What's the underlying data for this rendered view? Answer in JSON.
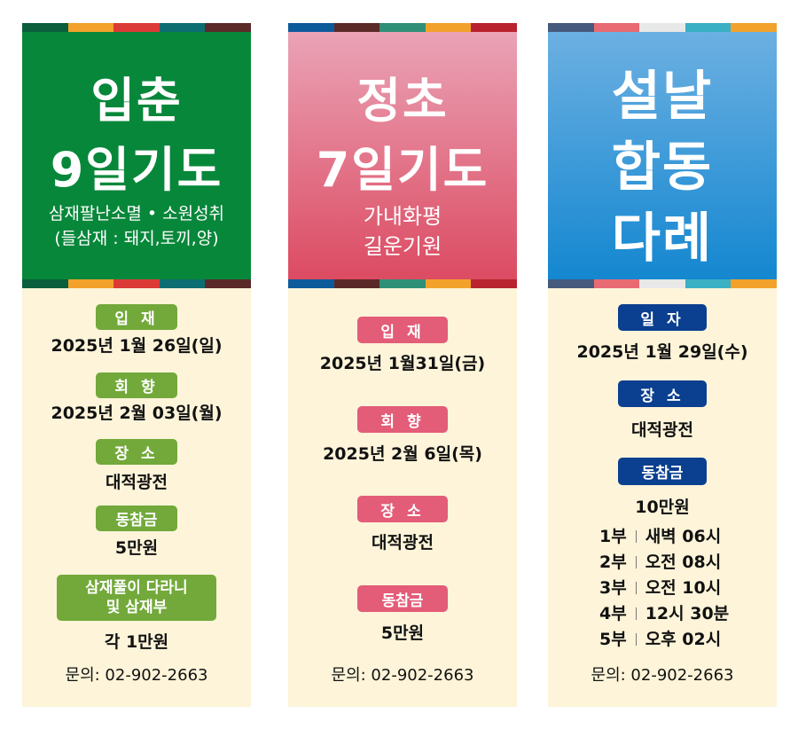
{
  "colors": {
    "green": "#07873a",
    "green_label": "#72a93a",
    "pink_top": "#eaa3b6",
    "pink_bottom": "#dc4b62",
    "pink_label": "#e35c78",
    "blue_top": "#6cb0e2",
    "blue_bottom": "#1487d0",
    "blue_label": "#0b3f8f",
    "cream": "#fdf4d9"
  },
  "panels": [
    {
      "title": [
        "입춘",
        "9일기도"
      ],
      "subtitle": [
        "삼재팔난소멸 • 소원성취",
        "(들삼재 : 돼지,토끼,양)"
      ],
      "items": [
        {
          "label": "입 재",
          "value": "2025년 1월 26일(일)"
        },
        {
          "label": "회 향",
          "value": "2025년 2월 03일(월)"
        },
        {
          "label": "장 소",
          "value": "대적광전"
        },
        {
          "label": "동참금",
          "value": "5만원"
        },
        {
          "label": "삼재풀이 다라니\n및 삼재부",
          "value": "각 1만원"
        }
      ],
      "contact": "문의: 02-902-2663"
    },
    {
      "title": [
        "정초",
        "7일기도"
      ],
      "subtitle": [
        "가내화평",
        "길운기원"
      ],
      "items": [
        {
          "label": "입 재",
          "value": "2025년 1월31일(금)"
        },
        {
          "label": "회 향",
          "value": "2025년 2월 6일(목)"
        },
        {
          "label": "장 소",
          "value": "대적광전"
        },
        {
          "label": "동참금",
          "value": "5만원"
        }
      ],
      "contact": "문의: 02-902-2663"
    },
    {
      "title": [
        "설날",
        "합동",
        "다례"
      ],
      "items": [
        {
          "label": "일 자",
          "value": "2025년 1월 29일(수)"
        },
        {
          "label": "장 소",
          "value": "대적광전"
        },
        {
          "label": "동참금",
          "value": "10만원"
        }
      ],
      "schedule": [
        {
          "part": "1부",
          "time": "새벽 06시"
        },
        {
          "part": "2부",
          "time": "오전 08시"
        },
        {
          "part": "3부",
          "time": "오전 10시"
        },
        {
          "part": "4부",
          "time": "12시 30분"
        },
        {
          "part": "5부",
          "time": "오후 02시"
        }
      ],
      "contact": "문의: 02-902-2663"
    }
  ]
}
